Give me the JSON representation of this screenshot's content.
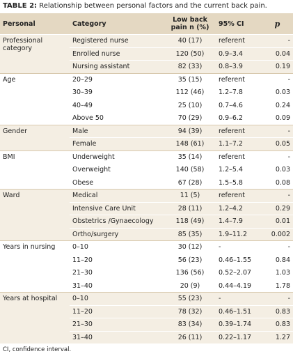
{
  "title": {
    "label": "TABLE 2:",
    "text": "Relationship between personal factors and the current back pain."
  },
  "table": {
    "header": [
      "Personal",
      "Category",
      "Low back pain n (%)",
      "95% CI",
      "p"
    ],
    "groups": [
      {
        "personal": "Professional category",
        "rows": [
          [
            "Registered nurse",
            "40 (17)",
            "referent",
            "-"
          ],
          [
            "Enrolled nurse",
            "120 (50)",
            "0.9–3.4",
            "0.04"
          ],
          [
            "Nursing assistant",
            "82 (33)",
            "0.8–3.9",
            "0.19"
          ]
        ]
      },
      {
        "personal": "Age",
        "rows": [
          [
            "20–29",
            "35 (15)",
            "referent",
            "-"
          ],
          [
            "30–39",
            "112 (46)",
            "1.2–7.8",
            "0.03"
          ],
          [
            "40–49",
            "25 (10)",
            "0.7–4.6",
            "0.24"
          ],
          [
            "Above 50",
            "70 (29)",
            "0.9–6.2",
            "0.09"
          ]
        ]
      },
      {
        "personal": "Gender",
        "rows": [
          [
            "Male",
            "94 (39)",
            "referent",
            "-"
          ],
          [
            "Female",
            "148 (61)",
            "1.1–7.2",
            "0.05"
          ]
        ]
      },
      {
        "personal": "BMI",
        "rows": [
          [
            "Underweight",
            "35 (14)",
            "referent",
            "-"
          ],
          [
            "Overweight",
            "140 (58)",
            "1.2–5.4",
            "0.03"
          ],
          [
            "Obese",
            "67 (28)",
            "1.5–5.8",
            "0.08"
          ]
        ]
      },
      {
        "personal": "Ward",
        "rows": [
          [
            "Medical",
            "11 (5)",
            "referent",
            "-"
          ],
          [
            "Intensive Care Unit",
            "28 (11)",
            "1.2–4.2",
            "0.29"
          ],
          [
            "Obstetrics /Gynaecology",
            "118 (49)",
            "1.4–7.9",
            "0.01"
          ],
          [
            "Ortho/surgery",
            "85 (35)",
            "1.9–11.2",
            "0.002"
          ]
        ]
      },
      {
        "personal": "Years in nursing",
        "rows": [
          [
            "0–10",
            "30 (12)",
            "-",
            "-"
          ],
          [
            "11–20",
            "56 (23)",
            "0.46–1.55",
            "0.84"
          ],
          [
            "21–30",
            "136 (56)",
            "0.52–2.07",
            "1.03"
          ],
          [
            "31–40",
            "20 (9)",
            "0.44–4.19",
            "1.78"
          ]
        ]
      },
      {
        "personal": "Years at hospital",
        "rows": [
          [
            "0–10",
            "55 (23)",
            "-",
            "-"
          ],
          [
            "11–20",
            "78 (32)",
            "0.46–1.51",
            "0.83"
          ],
          [
            "21–30",
            "83 (34)",
            "0.39–1.74",
            "0.83"
          ],
          [
            "31–40",
            "26 (11)",
            "0.22–1.17",
            "1.27"
          ]
        ]
      }
    ]
  },
  "footnote": "CI, confidence interval."
}
